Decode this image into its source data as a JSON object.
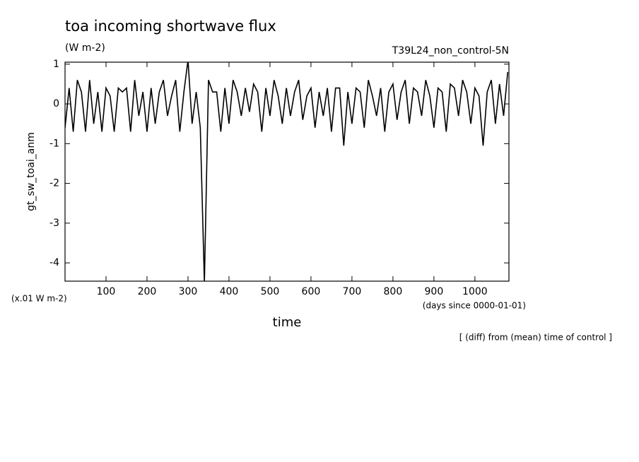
{
  "chart_data": {
    "type": "line",
    "title": "toa incoming shortwave flux",
    "subtitle": "(W m-2)",
    "run_label": "T39L24_non_control-5N",
    "y_label": "gt_sw_toai_anm",
    "scale_note": "(x.01 W m-2)",
    "x_label": "time",
    "x_units": "(days since 0000-01-01)",
    "footnote": "[ (diff) from (mean) time of control ]",
    "x": [
      0,
      10,
      20,
      30,
      40,
      50,
      60,
      70,
      80,
      90,
      100,
      110,
      120,
      130,
      140,
      150,
      160,
      170,
      180,
      190,
      200,
      210,
      220,
      230,
      240,
      250,
      260,
      270,
      280,
      290,
      300,
      310,
      320,
      330,
      340,
      350,
      360,
      370,
      380,
      390,
      400,
      410,
      420,
      430,
      440,
      450,
      460,
      470,
      480,
      490,
      500,
      510,
      520,
      530,
      540,
      550,
      560,
      570,
      580,
      590,
      600,
      610,
      620,
      630,
      640,
      650,
      660,
      670,
      680,
      690,
      700,
      710,
      720,
      730,
      740,
      750,
      760,
      770,
      780,
      790,
      800,
      810,
      820,
      830,
      840,
      850,
      860,
      870,
      880,
      890,
      900,
      910,
      920,
      930,
      940,
      950,
      960,
      970,
      980,
      990,
      1000,
      1010,
      1020,
      1030,
      1040,
      1050,
      1060,
      1070,
      1080
    ],
    "series": [
      {
        "color": "#000000",
        "values": [
          -0.6,
          0.4,
          -0.7,
          0.6,
          0.3,
          -0.7,
          0.6,
          -0.5,
          0.3,
          -0.7,
          0.4,
          0.2,
          -0.7,
          0.4,
          0.3,
          0.4,
          -0.7,
          0.6,
          -0.3,
          0.3,
          -0.7,
          0.4,
          -0.5,
          0.3,
          0.6,
          -0.3,
          0.2,
          0.6,
          -0.7,
          0.3,
          1.1,
          -0.5,
          0.3,
          -0.6,
          -4.5,
          0.6,
          0.3,
          0.3,
          -0.7,
          0.4,
          -0.5,
          0.6,
          0.3,
          -0.3,
          0.4,
          -0.2,
          0.5,
          0.3,
          -0.7,
          0.4,
          -0.3,
          0.6,
          0.2,
          -0.5,
          0.4,
          -0.3,
          0.3,
          0.6,
          -0.4,
          0.2,
          0.4,
          -0.6,
          0.3,
          -0.3,
          0.4,
          -0.7,
          0.4,
          0.4,
          -1.05,
          0.3,
          -0.5,
          0.4,
          0.3,
          -0.6,
          0.6,
          0.2,
          -0.3,
          0.4,
          -0.7,
          0.3,
          0.5,
          -0.4,
          0.3,
          0.6,
          -0.5,
          0.4,
          0.3,
          -0.3,
          0.6,
          0.2,
          -0.6,
          0.4,
          0.3,
          -0.7,
          0.5,
          0.4,
          -0.3,
          0.6,
          0.3,
          -0.5,
          0.4,
          0.2,
          -1.05,
          0.3,
          0.6,
          -0.5,
          0.5,
          -0.3,
          0.8
        ]
      }
    ],
    "xlim": [
      0,
      1083
    ],
    "xticks": [
      100,
      200,
      300,
      400,
      500,
      600,
      700,
      800,
      900,
      1000
    ],
    "ylim": [
      -4.46,
      1.05
    ],
    "yticks": [
      -4,
      -3,
      -2,
      -1,
      0,
      1
    ]
  }
}
